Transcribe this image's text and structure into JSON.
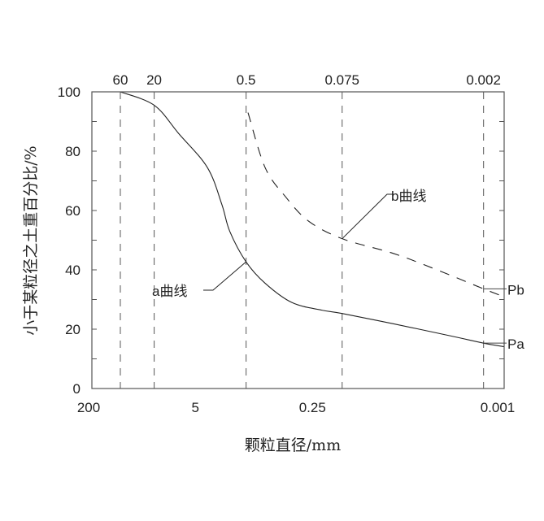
{
  "chart_data": {
    "type": "line",
    "title": "",
    "xlabel": "颗粒直径/mm",
    "ylabel": "小于某粒径之土重百分比/%",
    "x_scale": "log, reversed",
    "xlim": [
      200,
      0.001
    ],
    "ylim": [
      0,
      100
    ],
    "y_ticks": [
      0,
      20,
      40,
      60,
      80,
      100
    ],
    "x_ticks_bottom": [
      200,
      5,
      0.25,
      0.001
    ],
    "x_ticks_top": [
      60,
      20,
      0.5,
      0.075,
      0.002
    ],
    "x_tick_labels_bottom": [
      "200",
      "5",
      "0.25",
      "0.001"
    ],
    "x_tick_labels_top": [
      "60",
      "20",
      "0.5",
      "0.075",
      "0.002"
    ],
    "y_tick_labels": [
      "0",
      "20",
      "40",
      "60",
      "80",
      "100"
    ],
    "vertical_dashed_gridlines": [
      60,
      20,
      0.5,
      0.075,
      0.002
    ],
    "grid": false,
    "series": [
      {
        "name": "a曲线",
        "style": "solid",
        "color": "#222222",
        "x": [
          60,
          20,
          8.8,
          2.9,
          1.5,
          1.05,
          0.5,
          0.41,
          0.31,
          0.17,
          0.075,
          0.02,
          0.0046,
          0.002,
          0.001
        ],
        "y": [
          100,
          95.5,
          86,
          74.5,
          62,
          53,
          42.7,
          35.5,
          29,
          26.4,
          25.3,
          21.8,
          17.7,
          15.3,
          14.1
        ]
      },
      {
        "name": "b曲线",
        "style": "dashed",
        "color": "#222222",
        "x": [
          0.49,
          0.41,
          0.33,
          0.26,
          0.075,
          0.02,
          0.0066,
          0.002,
          0.001
        ],
        "y": [
          93,
          74.5,
          64.5,
          56.4,
          50.5,
          45.5,
          40,
          33.6,
          30.9
        ]
      }
    ],
    "annotations": [
      {
        "text": "a曲线",
        "points_to": [
          0.5,
          42.7
        ]
      },
      {
        "text": "b曲线",
        "points_to": [
          0.075,
          50.5
        ]
      },
      {
        "text": "Pb",
        "points_to": [
          0.002,
          33.6
        ]
      },
      {
        "text": "Pa",
        "points_to": [
          0.002,
          15.3
        ]
      }
    ]
  }
}
